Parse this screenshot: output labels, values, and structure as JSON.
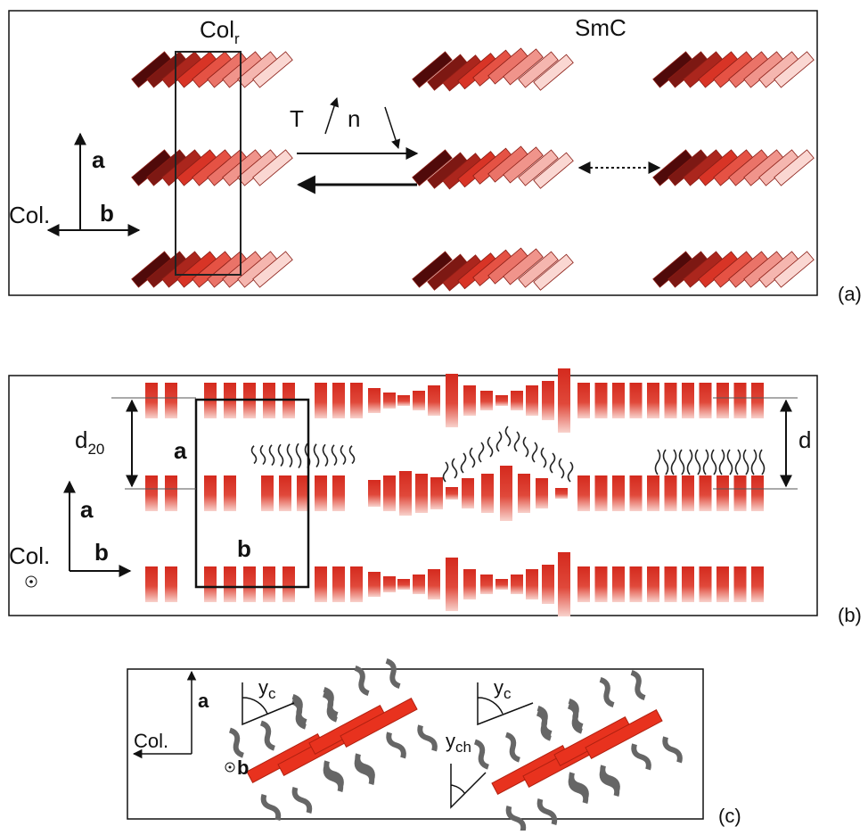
{
  "panel_a": {
    "label": "(a)",
    "phase_left": {
      "base": "Col",
      "sub": "r"
    },
    "phase_right": "SmC",
    "transition_left": "T",
    "transition_right": "n",
    "axis_up": "a",
    "axis_right": "b",
    "axis_origin": "Col."
  },
  "panel_b": {
    "label": "(b)",
    "spacing_left": {
      "base": "d",
      "sub": "20"
    },
    "spacing_right": "d",
    "cell_a": "a",
    "cell_b": "b",
    "axis_up": "a",
    "axis_right": "b",
    "axis_origin": "Col."
  },
  "panel_c": {
    "label": "(c)",
    "axis_up": "a",
    "axis_out": "b",
    "axis_origin": "Col.",
    "angle_core_1": {
      "base": "y",
      "sub": "c"
    },
    "angle_chain": {
      "base": "y",
      "sub": "ch"
    },
    "angle_core_2": {
      "base": "y",
      "sub": "c"
    }
  }
}
